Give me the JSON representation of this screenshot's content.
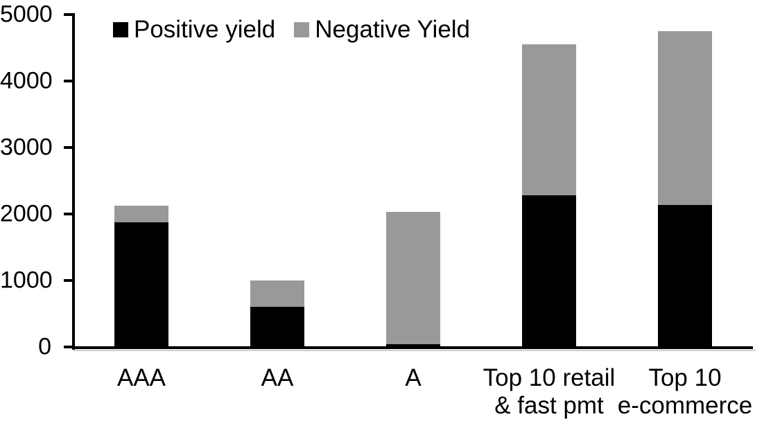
{
  "chart_data": {
    "type": "bar",
    "stacked": true,
    "title": "",
    "categories": [
      "AAA",
      "AA",
      "A",
      "Top 10 retail\n& fast pmt",
      "Top 10\ne-commerce"
    ],
    "series": [
      {
        "name": "Positive yield",
        "color": "#000000",
        "values": [
          1880,
          600,
          40,
          2280,
          2140
        ]
      },
      {
        "name": "Negative Yield",
        "color": "#999999",
        "values": [
          250,
          400,
          1990,
          2270,
          2610
        ]
      }
    ],
    "totals": [
      2130,
      1000,
      2030,
      4550,
      4750
    ],
    "xlabel": "",
    "ylabel": "",
    "ylim": [
      0,
      5000
    ],
    "yticks": [
      0,
      1000,
      2000,
      3000,
      4000,
      5000
    ],
    "grid": false,
    "legend_position": "top-left",
    "axis_color": "#000000",
    "background_color": "#ffffff"
  }
}
